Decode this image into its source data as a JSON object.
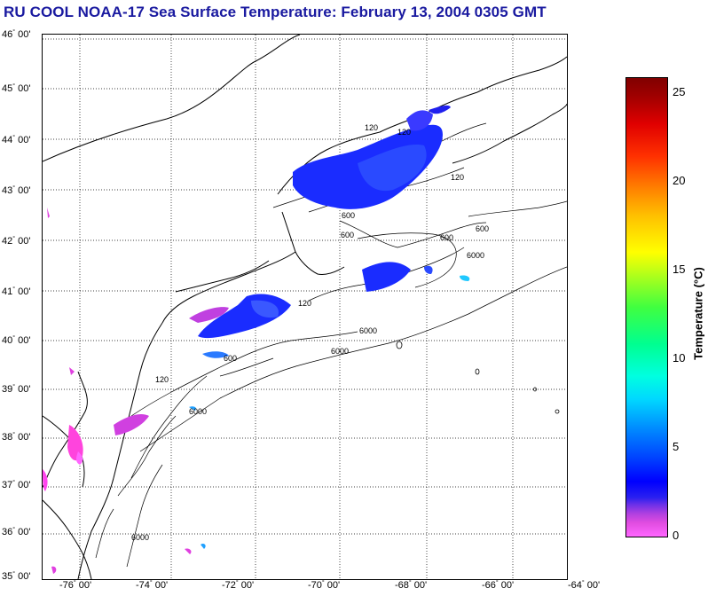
{
  "title": "RU COOL  NOAA-17  Sea Surface Temperature:  February 13, 2004 0305 GMT",
  "latitude_labels": [
    {
      "deg": "46",
      "min": "00'"
    },
    {
      "deg": "45",
      "min": "00'"
    },
    {
      "deg": "44",
      "min": "00'"
    },
    {
      "deg": "43",
      "min": "00'"
    },
    {
      "deg": "42",
      "min": "00'"
    },
    {
      "deg": "41",
      "min": "00'"
    },
    {
      "deg": "40",
      "min": "00'"
    },
    {
      "deg": "39",
      "min": "00'"
    },
    {
      "deg": "38",
      "min": "00'"
    },
    {
      "deg": "37",
      "min": "00'"
    },
    {
      "deg": "36",
      "min": "00'"
    },
    {
      "deg": "35",
      "min": "00'"
    }
  ],
  "longitude_labels": [
    {
      "deg": "-76",
      "min": "00'"
    },
    {
      "deg": "-74",
      "min": "00'"
    },
    {
      "deg": "-72",
      "min": "00'"
    },
    {
      "deg": "-70",
      "min": "00'"
    },
    {
      "deg": "-68",
      "min": "00'"
    },
    {
      "deg": "-66",
      "min": "00'"
    },
    {
      "deg": "-64",
      "min": "00'"
    }
  ],
  "bathymetry_labels": [
    "120",
    "120",
    "600",
    "600",
    "600",
    "6000",
    "6000",
    "120",
    "600",
    "6000",
    "6000",
    "120",
    "600",
    "6000",
    "120"
  ],
  "colorbar": {
    "label": "Temperature (°C)",
    "ticks": [
      "25",
      "20",
      "15",
      "10",
      "5",
      "0"
    ],
    "range": [
      0,
      26
    ]
  },
  "colors": {
    "title": "#1a1aa0",
    "cold_blue": "#1a2cff",
    "magenta": "#e040e0",
    "cyan": "#20a0ff"
  }
}
